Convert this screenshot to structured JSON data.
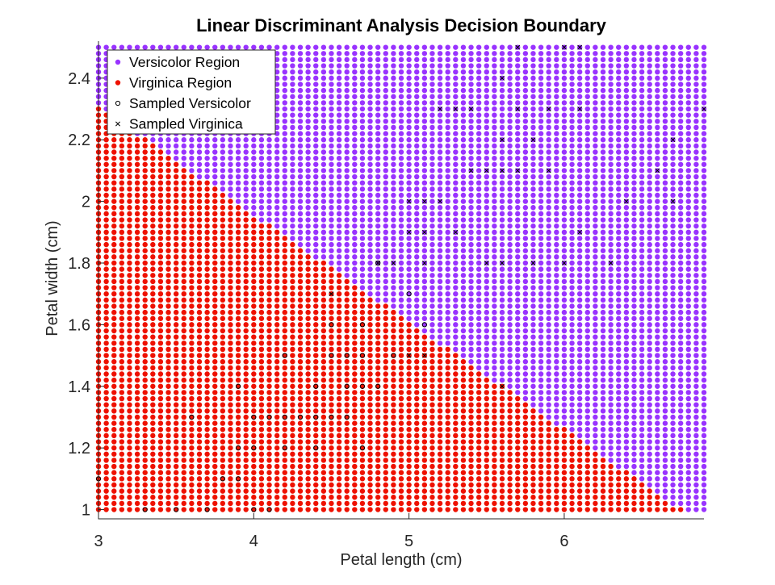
{
  "chart_data": {
    "type": "scatter",
    "title": "Linear Discriminant Analysis Decision Boundary",
    "xlabel": "Petal length (cm)",
    "ylabel": "Petal width (cm)",
    "xlim": [
      3,
      6.9
    ],
    "ylim": [
      0.97,
      2.52
    ],
    "xticks": [
      3,
      4,
      5,
      6
    ],
    "xtick_labels": [
      "3",
      "4",
      "5",
      "6"
    ],
    "yticks": [
      1,
      1.2,
      1.4,
      1.6,
      1.8,
      2,
      2.2,
      2.4
    ],
    "ytick_labels": [
      "1",
      "1.2",
      "1.4",
      "1.6",
      "1.8",
      "2",
      "2.2",
      "2.4"
    ],
    "grid": false,
    "legend_position": "top-left",
    "decision_grid": {
      "x_range": [
        3,
        6.9
      ],
      "y_range": [
        1,
        2.5
      ],
      "x_step": 0.05,
      "y_step": 0.02,
      "boundary": {
        "x1": [
          3.3,
          2.2
        ],
        "x2": [
          6.75,
          1
        ]
      }
    },
    "series": [
      {
        "name": "Versicolor Region",
        "marker": "filled-dot",
        "color": "#9933ff"
      },
      {
        "name": "Virginica Region",
        "marker": "filled-dot",
        "color": "#ee1100"
      },
      {
        "name": "Sampled Versicolor",
        "marker": "circle",
        "color": "#000000",
        "points": [
          [
            3.0,
            1.1
          ],
          [
            3.3,
            1.0
          ],
          [
            3.5,
            1.0
          ],
          [
            3.6,
            1.3
          ],
          [
            3.7,
            1.0
          ],
          [
            3.8,
            1.1
          ],
          [
            3.9,
            1.1
          ],
          [
            3.9,
            1.2
          ],
          [
            3.9,
            1.4
          ],
          [
            4.0,
            1.0
          ],
          [
            4.0,
            1.2
          ],
          [
            4.0,
            1.3
          ],
          [
            4.1,
            1.0
          ],
          [
            4.1,
            1.3
          ],
          [
            4.2,
            1.2
          ],
          [
            4.2,
            1.3
          ],
          [
            4.2,
            1.5
          ],
          [
            4.3,
            1.3
          ],
          [
            4.4,
            1.2
          ],
          [
            4.4,
            1.3
          ],
          [
            4.4,
            1.4
          ],
          [
            4.5,
            1.3
          ],
          [
            4.5,
            1.5
          ],
          [
            4.5,
            1.6
          ],
          [
            4.6,
            1.3
          ],
          [
            4.6,
            1.4
          ],
          [
            4.6,
            1.5
          ],
          [
            4.7,
            1.2
          ],
          [
            4.7,
            1.4
          ],
          [
            4.7,
            1.5
          ],
          [
            4.7,
            1.6
          ],
          [
            4.8,
            1.4
          ],
          [
            4.8,
            1.8
          ],
          [
            4.9,
            1.5
          ],
          [
            5.0,
            1.7
          ],
          [
            5.1,
            1.6
          ]
        ]
      },
      {
        "name": "Sampled Virginica",
        "marker": "x",
        "color": "#000000",
        "points": [
          [
            4.5,
            1.7
          ],
          [
            4.8,
            1.8
          ],
          [
            4.9,
            1.8
          ],
          [
            5.0,
            1.5
          ],
          [
            5.0,
            1.9
          ],
          [
            5.0,
            2.0
          ],
          [
            5.1,
            1.5
          ],
          [
            5.1,
            1.8
          ],
          [
            5.1,
            1.9
          ],
          [
            5.1,
            2.0
          ],
          [
            5.2,
            2.0
          ],
          [
            5.2,
            2.3
          ],
          [
            5.3,
            1.9
          ],
          [
            5.3,
            2.3
          ],
          [
            5.4,
            2.1
          ],
          [
            5.4,
            2.3
          ],
          [
            5.5,
            1.8
          ],
          [
            5.5,
            2.1
          ],
          [
            5.6,
            1.4
          ],
          [
            5.6,
            1.8
          ],
          [
            5.6,
            2.1
          ],
          [
            5.6,
            2.2
          ],
          [
            5.6,
            2.4
          ],
          [
            5.7,
            2.1
          ],
          [
            5.7,
            2.3
          ],
          [
            5.7,
            2.5
          ],
          [
            5.8,
            1.8
          ],
          [
            5.8,
            2.2
          ],
          [
            5.9,
            2.1
          ],
          [
            5.9,
            2.3
          ],
          [
            6.0,
            1.8
          ],
          [
            6.0,
            2.5
          ],
          [
            6.1,
            1.9
          ],
          [
            6.1,
            2.3
          ],
          [
            6.1,
            2.5
          ],
          [
            6.3,
            1.8
          ],
          [
            6.4,
            2.0
          ],
          [
            6.6,
            2.1
          ],
          [
            6.7,
            2.0
          ],
          [
            6.7,
            2.2
          ],
          [
            6.9,
            2.3
          ]
        ]
      }
    ]
  }
}
